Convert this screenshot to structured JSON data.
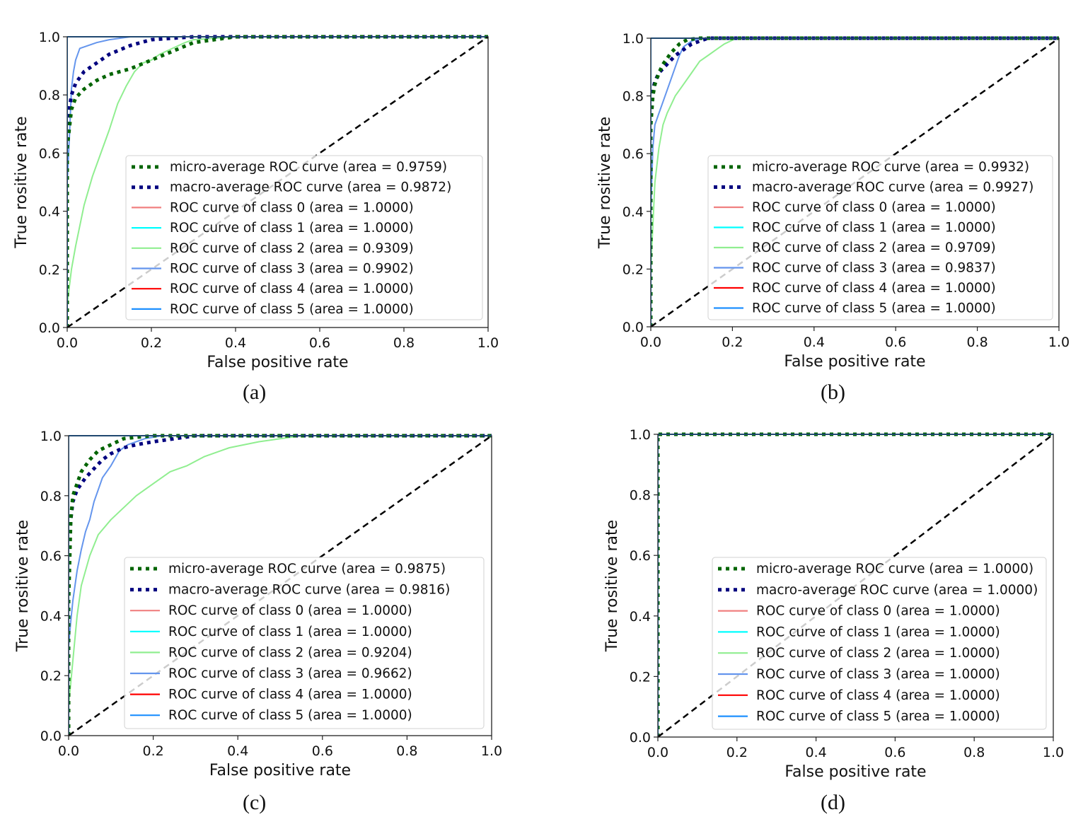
{
  "colors": {
    "micro": "#006400",
    "macro": "#00007f",
    "class0": "#f08080",
    "class1": "#00ffff",
    "class2": "#90ee90",
    "class3": "#6495ed",
    "class4": "#ff0000",
    "class5": "#1e90ff",
    "diagonal": "#000000"
  },
  "chart_data": [
    {
      "type": "line",
      "caption": "(a)",
      "xlabel": "False positive rate",
      "ylabel": "True rositive rate",
      "xlim": [
        0.0,
        1.0
      ],
      "ylim": [
        0.0,
        1.0
      ],
      "xticks": [
        "0.0",
        "0.2",
        "0.4",
        "0.6",
        "0.8",
        "1.0"
      ],
      "yticks": [
        "0.0",
        "0.2",
        "0.4",
        "0.6",
        "0.8",
        "1.0"
      ],
      "legend_position": "lower-right",
      "series": [
        {
          "key": "micro",
          "name": "micro-average ROC curve (area = 0.9759)",
          "style": "dotted",
          "x": [
            0,
            0.0,
            0.01,
            0.02,
            0.04,
            0.07,
            0.1,
            0.15,
            0.2,
            0.25,
            0.3,
            0.4,
            1.0
          ],
          "y": [
            0,
            0.62,
            0.75,
            0.79,
            0.82,
            0.85,
            0.87,
            0.89,
            0.92,
            0.95,
            0.98,
            1.0,
            1.0
          ]
        },
        {
          "key": "macro",
          "name": "macro-average ROC curve (area = 0.9872)",
          "style": "dotted",
          "x": [
            0,
            0.0,
            0.01,
            0.02,
            0.04,
            0.07,
            0.1,
            0.15,
            0.2,
            0.3,
            1.0
          ],
          "y": [
            0,
            0.7,
            0.8,
            0.84,
            0.88,
            0.91,
            0.94,
            0.97,
            0.99,
            1.0,
            1.0
          ]
        },
        {
          "key": "class0",
          "name": "ROC curve of class 0 (area = 1.0000)",
          "style": "solid",
          "x": [
            0,
            0,
            1.0
          ],
          "y": [
            0,
            1.0,
            1.0
          ]
        },
        {
          "key": "class1",
          "name": "ROC curve of class 1 (area = 1.0000)",
          "style": "solid",
          "x": [
            0,
            0,
            1.0
          ],
          "y": [
            0,
            1.0,
            1.0
          ]
        },
        {
          "key": "class2",
          "name": "ROC curve of class 2 (area = 0.9309)",
          "style": "solid",
          "x": [
            0,
            0.0,
            0.01,
            0.02,
            0.04,
            0.06,
            0.08,
            0.1,
            0.12,
            0.14,
            0.16,
            0.18,
            0.2,
            0.22,
            0.25,
            0.28,
            0.3,
            0.35,
            0.4,
            0.5,
            1.0
          ],
          "y": [
            0,
            0.08,
            0.2,
            0.28,
            0.42,
            0.52,
            0.6,
            0.68,
            0.77,
            0.83,
            0.88,
            0.91,
            0.92,
            0.94,
            0.96,
            0.98,
            0.99,
            0.995,
            1.0,
            1.0,
            1.0
          ]
        },
        {
          "key": "class3",
          "name": "ROC curve of class 3 (area = 0.9902)",
          "style": "solid",
          "x": [
            0,
            0.0,
            0.005,
            0.01,
            0.015,
            0.02,
            0.03,
            0.05,
            0.07,
            0.1,
            0.15,
            1.0
          ],
          "y": [
            0,
            0.5,
            0.65,
            0.82,
            0.88,
            0.92,
            0.96,
            0.97,
            0.98,
            0.99,
            1.0,
            1.0
          ]
        },
        {
          "key": "class4",
          "name": "ROC curve of class 4 (area = 1.0000)",
          "style": "solid",
          "x": [
            0,
            0,
            1.0
          ],
          "y": [
            0,
            1.0,
            1.0
          ]
        },
        {
          "key": "class5",
          "name": "ROC curve of class 5 (area = 1.0000)",
          "style": "solid",
          "x": [
            0,
            0,
            1.0
          ],
          "y": [
            0,
            1.0,
            1.0
          ]
        }
      ]
    },
    {
      "type": "line",
      "caption": "(b)",
      "xlabel": "False positive rate",
      "ylabel": "True rositive rate",
      "xlim": [
        0.0,
        1.0
      ],
      "ylim": [
        0.0,
        1.0
      ],
      "xticks": [
        "0.0",
        "0.2",
        "0.4",
        "0.6",
        "0.8",
        "1.0"
      ],
      "yticks": [
        "0.0",
        "0.2",
        "0.4",
        "0.6",
        "0.8",
        "1.0"
      ],
      "legend_position": "lower-right",
      "series": [
        {
          "key": "micro",
          "name": "micro-average ROC curve (area = 0.9932)",
          "style": "dotted",
          "x": [
            0,
            0.0,
            0.005,
            0.01,
            0.02,
            0.03,
            0.05,
            0.07,
            0.09,
            0.12,
            1.0
          ],
          "y": [
            0,
            0.7,
            0.8,
            0.84,
            0.88,
            0.91,
            0.95,
            0.98,
            0.995,
            1.0,
            1.0
          ]
        },
        {
          "key": "macro",
          "name": "macro-average ROC curve (area = 0.9927)",
          "style": "dotted",
          "x": [
            0,
            0.0,
            0.005,
            0.01,
            0.02,
            0.04,
            0.06,
            0.08,
            0.1,
            0.14,
            1.0
          ],
          "y": [
            0,
            0.75,
            0.82,
            0.85,
            0.88,
            0.91,
            0.94,
            0.96,
            0.98,
            1.0,
            1.0
          ]
        },
        {
          "key": "class0",
          "name": "ROC curve of class 0 (area = 1.0000)",
          "style": "solid",
          "x": [
            0,
            0,
            1.0
          ],
          "y": [
            0,
            1.0,
            1.0
          ]
        },
        {
          "key": "class1",
          "name": "ROC curve of class 1 (area = 1.0000)",
          "style": "solid",
          "x": [
            0,
            0,
            1.0
          ],
          "y": [
            0,
            1.0,
            1.0
          ]
        },
        {
          "key": "class2",
          "name": "ROC curve of class 2 (area = 0.9709)",
          "style": "solid",
          "x": [
            0,
            0.0,
            0.01,
            0.02,
            0.03,
            0.04,
            0.05,
            0.06,
            0.08,
            0.1,
            0.12,
            0.14,
            0.16,
            0.18,
            0.21,
            1.0
          ],
          "y": [
            0,
            0.2,
            0.5,
            0.62,
            0.7,
            0.74,
            0.77,
            0.8,
            0.84,
            0.88,
            0.92,
            0.94,
            0.96,
            0.98,
            1.0,
            1.0
          ]
        },
        {
          "key": "class3",
          "name": "ROC curve of class 3 (area = 0.9837)",
          "style": "solid",
          "x": [
            0,
            0.0,
            0.005,
            0.01,
            0.02,
            0.03,
            0.04,
            0.05,
            0.06,
            0.07,
            0.08,
            0.1,
            0.12,
            1.0
          ],
          "y": [
            0,
            0.4,
            0.62,
            0.7,
            0.74,
            0.78,
            0.82,
            0.86,
            0.9,
            0.94,
            0.97,
            0.99,
            1.0,
            1.0
          ]
        },
        {
          "key": "class4",
          "name": "ROC curve of class 4 (area = 1.0000)",
          "style": "solid",
          "x": [
            0,
            0,
            1.0
          ],
          "y": [
            0,
            1.0,
            1.0
          ]
        },
        {
          "key": "class5",
          "name": "ROC curve of class 5 (area = 1.0000)",
          "style": "solid",
          "x": [
            0,
            0,
            1.0
          ],
          "y": [
            0,
            1.0,
            1.0
          ]
        }
      ]
    },
    {
      "type": "line",
      "caption": "(c)",
      "xlabel": "False positive rate",
      "ylabel": "True rositive rate",
      "xlim": [
        0.0,
        1.0
      ],
      "ylim": [
        0.0,
        1.0
      ],
      "xticks": [
        "0.0",
        "0.2",
        "0.4",
        "0.6",
        "0.8",
        "1.0"
      ],
      "yticks": [
        "0.0",
        "0.2",
        "0.4",
        "0.6",
        "0.8",
        "1.0"
      ],
      "legend_position": "lower-right",
      "series": [
        {
          "key": "micro",
          "name": "micro-average ROC curve (area = 0.9875)",
          "style": "dotted",
          "x": [
            0,
            0.0,
            0.005,
            0.01,
            0.02,
            0.03,
            0.05,
            0.07,
            0.1,
            0.13,
            0.16,
            0.2,
            1.0
          ],
          "y": [
            0,
            0.45,
            0.72,
            0.8,
            0.84,
            0.88,
            0.92,
            0.95,
            0.97,
            0.99,
            0.995,
            1.0,
            1.0
          ]
        },
        {
          "key": "macro",
          "name": "macro-average ROC curve (area = 0.9816)",
          "style": "dotted",
          "x": [
            0,
            0.0,
            0.005,
            0.01,
            0.02,
            0.04,
            0.06,
            0.08,
            0.1,
            0.13,
            0.16,
            0.2,
            0.25,
            0.3,
            1.0
          ],
          "y": [
            0,
            0.6,
            0.72,
            0.78,
            0.82,
            0.86,
            0.89,
            0.92,
            0.94,
            0.96,
            0.97,
            0.98,
            0.99,
            1.0,
            1.0
          ]
        },
        {
          "key": "class0",
          "name": "ROC curve of class 0 (area = 1.0000)",
          "style": "solid",
          "x": [
            0,
            0,
            1.0
          ],
          "y": [
            0,
            1.0,
            1.0
          ]
        },
        {
          "key": "class1",
          "name": "ROC curve of class 1 (area = 1.0000)",
          "style": "solid",
          "x": [
            0,
            0,
            1.0
          ],
          "y": [
            0,
            1.0,
            1.0
          ]
        },
        {
          "key": "class2",
          "name": "ROC curve of class 2 (area = 0.9204)",
          "style": "solid",
          "x": [
            0,
            0.0,
            0.01,
            0.02,
            0.03,
            0.05,
            0.07,
            0.1,
            0.13,
            0.16,
            0.2,
            0.24,
            0.28,
            0.32,
            0.38,
            0.45,
            0.5,
            0.55,
            1.0
          ],
          "y": [
            0,
            0.1,
            0.25,
            0.4,
            0.5,
            0.6,
            0.67,
            0.72,
            0.76,
            0.8,
            0.84,
            0.88,
            0.9,
            0.93,
            0.96,
            0.98,
            0.99,
            1.0,
            1.0
          ]
        },
        {
          "key": "class3",
          "name": "ROC curve of class 3 (area = 0.9662)",
          "style": "solid",
          "x": [
            0,
            0.0,
            0.005,
            0.01,
            0.02,
            0.03,
            0.04,
            0.05,
            0.06,
            0.07,
            0.08,
            0.1,
            0.12,
            0.14,
            0.18,
            0.22,
            1.0
          ],
          "y": [
            0,
            0.3,
            0.38,
            0.45,
            0.55,
            0.62,
            0.68,
            0.72,
            0.78,
            0.82,
            0.86,
            0.9,
            0.95,
            0.97,
            0.99,
            1.0,
            1.0
          ]
        },
        {
          "key": "class4",
          "name": "ROC curve of class 4 (area = 1.0000)",
          "style": "solid",
          "x": [
            0,
            0,
            1.0
          ],
          "y": [
            0,
            1.0,
            1.0
          ]
        },
        {
          "key": "class5",
          "name": "ROC curve of class 5 (area = 1.0000)",
          "style": "solid",
          "x": [
            0,
            0,
            1.0
          ],
          "y": [
            0,
            1.0,
            1.0
          ]
        }
      ]
    },
    {
      "type": "line",
      "caption": "(d)",
      "xlabel": "False positive rate",
      "ylabel": "True rositive rate",
      "xlim": [
        0.0,
        1.0
      ],
      "ylim": [
        0.0,
        1.0
      ],
      "xticks": [
        "0.0",
        "0.2",
        "0.4",
        "0.6",
        "0.8",
        "1.0"
      ],
      "yticks": [
        "0.0",
        "0.2",
        "0.4",
        "0.6",
        "0.8",
        "1.0"
      ],
      "legend_position": "lower-right",
      "series": [
        {
          "key": "micro",
          "name": "micro-average ROC curve (area = 1.0000)",
          "style": "dotted",
          "x": [
            0,
            0,
            1.0
          ],
          "y": [
            0,
            1.0,
            1.0
          ]
        },
        {
          "key": "macro",
          "name": "macro-average ROC curve (area = 1.0000)",
          "style": "dotted",
          "x": [
            0,
            0,
            1.0
          ],
          "y": [
            0,
            1.0,
            1.0
          ]
        },
        {
          "key": "class0",
          "name": "ROC curve of class 0 (area = 1.0000)",
          "style": "solid",
          "x": [
            0,
            0,
            1.0
          ],
          "y": [
            0,
            1.0,
            1.0
          ]
        },
        {
          "key": "class1",
          "name": "ROC curve of class 1 (area = 1.0000)",
          "style": "solid",
          "x": [
            0,
            0,
            1.0
          ],
          "y": [
            0,
            1.0,
            1.0
          ]
        },
        {
          "key": "class2",
          "name": "ROC curve of class 2 (area = 1.0000)",
          "style": "solid",
          "x": [
            0,
            0,
            1.0
          ],
          "y": [
            0,
            1.0,
            1.0
          ]
        },
        {
          "key": "class3",
          "name": "ROC curve of class 3 (area = 1.0000)",
          "style": "solid",
          "x": [
            0,
            0,
            1.0
          ],
          "y": [
            0,
            1.0,
            1.0
          ]
        },
        {
          "key": "class4",
          "name": "ROC curve of class 4 (area = 1.0000)",
          "style": "solid",
          "x": [
            0,
            0,
            1.0
          ],
          "y": [
            0,
            1.0,
            1.0
          ]
        },
        {
          "key": "class5",
          "name": "ROC curve of class 5 (area = 1.0000)",
          "style": "solid",
          "x": [
            0,
            0,
            1.0
          ],
          "y": [
            0,
            1.0,
            1.0
          ]
        }
      ]
    }
  ]
}
